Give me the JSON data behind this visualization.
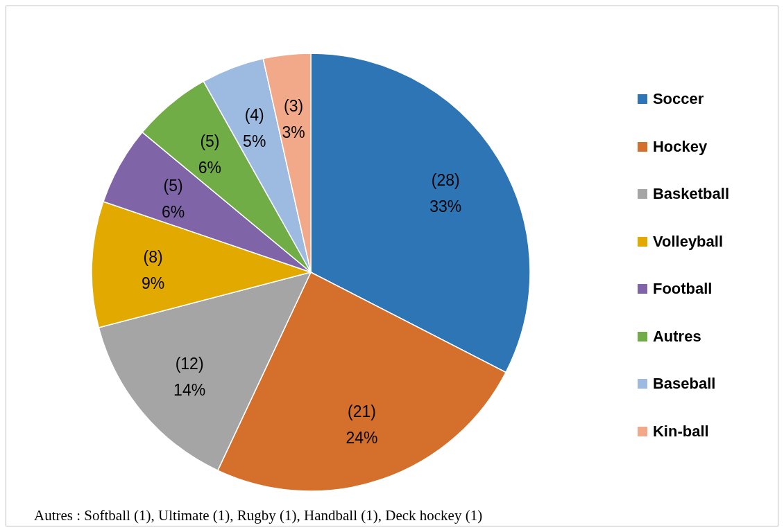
{
  "chart_data": {
    "type": "pie",
    "categories": [
      "Soccer",
      "Hockey",
      "Basketball",
      "Volleyball",
      "Football",
      "Autres",
      "Baseball",
      "Kin-ball"
    ],
    "values": [
      28,
      21,
      12,
      8,
      5,
      5,
      4,
      3
    ],
    "value_labels": [
      "(28)\n33%",
      "(21)\n24%",
      "(12)\n14%",
      "(8)\n9%",
      "(5)\n6%",
      "(5)\n6%",
      "(4)\n5%",
      "(3)\n3%"
    ],
    "colors": [
      "#2e75b6",
      "#d46f2c",
      "#a5a5a5",
      "#e2aa00",
      "#8064a8",
      "#70ad47",
      "#9dbbe0",
      "#f2a98a"
    ],
    "legend": "right",
    "annotations": [
      "Autres : Softball (1), Ultimate (1), Rugby (1), Handball (1), Deck hockey (1)"
    ]
  }
}
